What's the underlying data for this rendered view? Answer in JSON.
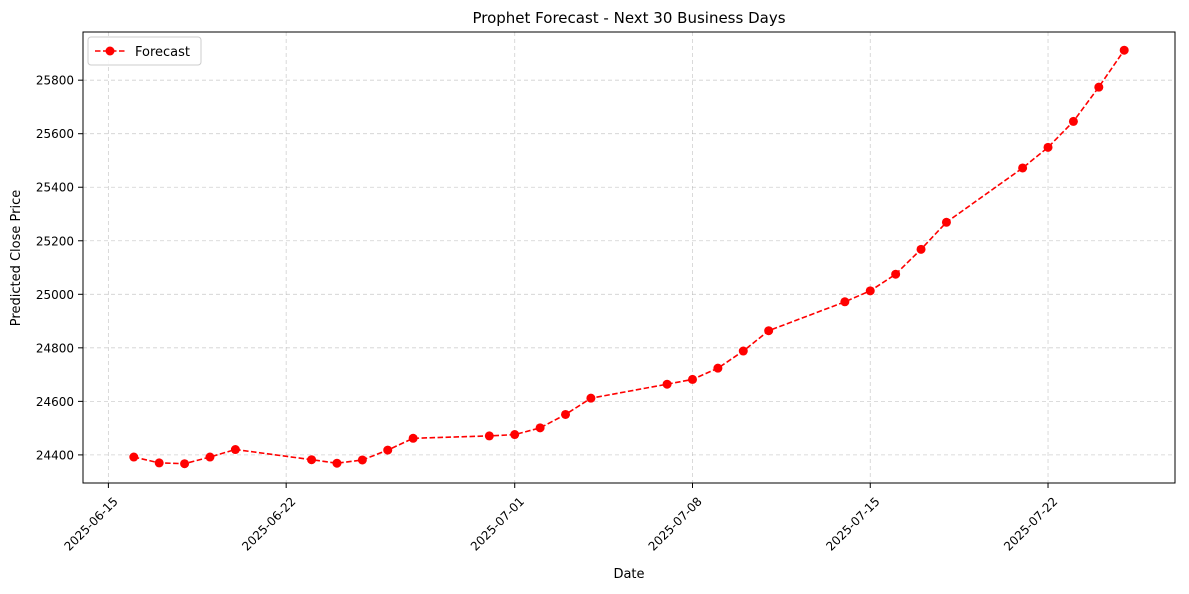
{
  "chart_data": {
    "type": "line",
    "title": "Prophet Forecast - Next 30 Business Days",
    "xlabel": "Date",
    "ylabel": "Predicted Close Price",
    "x_ticks": [
      "2025-06-15",
      "2025-06-22",
      "2025-07-01",
      "2025-07-08",
      "2025-07-15",
      "2025-07-22"
    ],
    "y_ticks": [
      24400,
      24600,
      24800,
      25000,
      25200,
      25400,
      25600,
      25800
    ],
    "xlim": [
      "2025-06-14",
      "2025-07-27"
    ],
    "ylim": [
      24295,
      25980
    ],
    "grid": true,
    "legend_position": "top-left",
    "series": [
      {
        "name": "Forecast",
        "color": "#ff0000",
        "line_style": "dashed",
        "marker": "circle",
        "points": [
          {
            "x": "2025-06-16",
            "y": 24392
          },
          {
            "x": "2025-06-17",
            "y": 24370
          },
          {
            "x": "2025-06-18",
            "y": 24367
          },
          {
            "x": "2025-06-19",
            "y": 24392
          },
          {
            "x": "2025-06-20",
            "y": 24420
          },
          {
            "x": "2025-06-23",
            "y": 24382
          },
          {
            "x": "2025-06-24",
            "y": 24369
          },
          {
            "x": "2025-06-25",
            "y": 24381
          },
          {
            "x": "2025-06-26",
            "y": 24418
          },
          {
            "x": "2025-06-27",
            "y": 24462
          },
          {
            "x": "2025-06-30",
            "y": 24471
          },
          {
            "x": "2025-07-01",
            "y": 24476
          },
          {
            "x": "2025-07-02",
            "y": 24501
          },
          {
            "x": "2025-07-03",
            "y": 24551
          },
          {
            "x": "2025-07-04",
            "y": 24612
          },
          {
            "x": "2025-07-07",
            "y": 24664
          },
          {
            "x": "2025-07-08",
            "y": 24682
          },
          {
            "x": "2025-07-09",
            "y": 24724
          },
          {
            "x": "2025-07-10",
            "y": 24788
          },
          {
            "x": "2025-07-11",
            "y": 24864
          },
          {
            "x": "2025-07-14",
            "y": 24972
          },
          {
            "x": "2025-07-15",
            "y": 25013
          },
          {
            "x": "2025-07-16",
            "y": 25075
          },
          {
            "x": "2025-07-17",
            "y": 25168
          },
          {
            "x": "2025-07-18",
            "y": 25269
          },
          {
            "x": "2025-07-21",
            "y": 25472
          },
          {
            "x": "2025-07-22",
            "y": 25549
          },
          {
            "x": "2025-07-23",
            "y": 25646
          },
          {
            "x": "2025-07-24",
            "y": 25774
          },
          {
            "x": "2025-07-25",
            "y": 25912
          }
        ]
      }
    ]
  }
}
